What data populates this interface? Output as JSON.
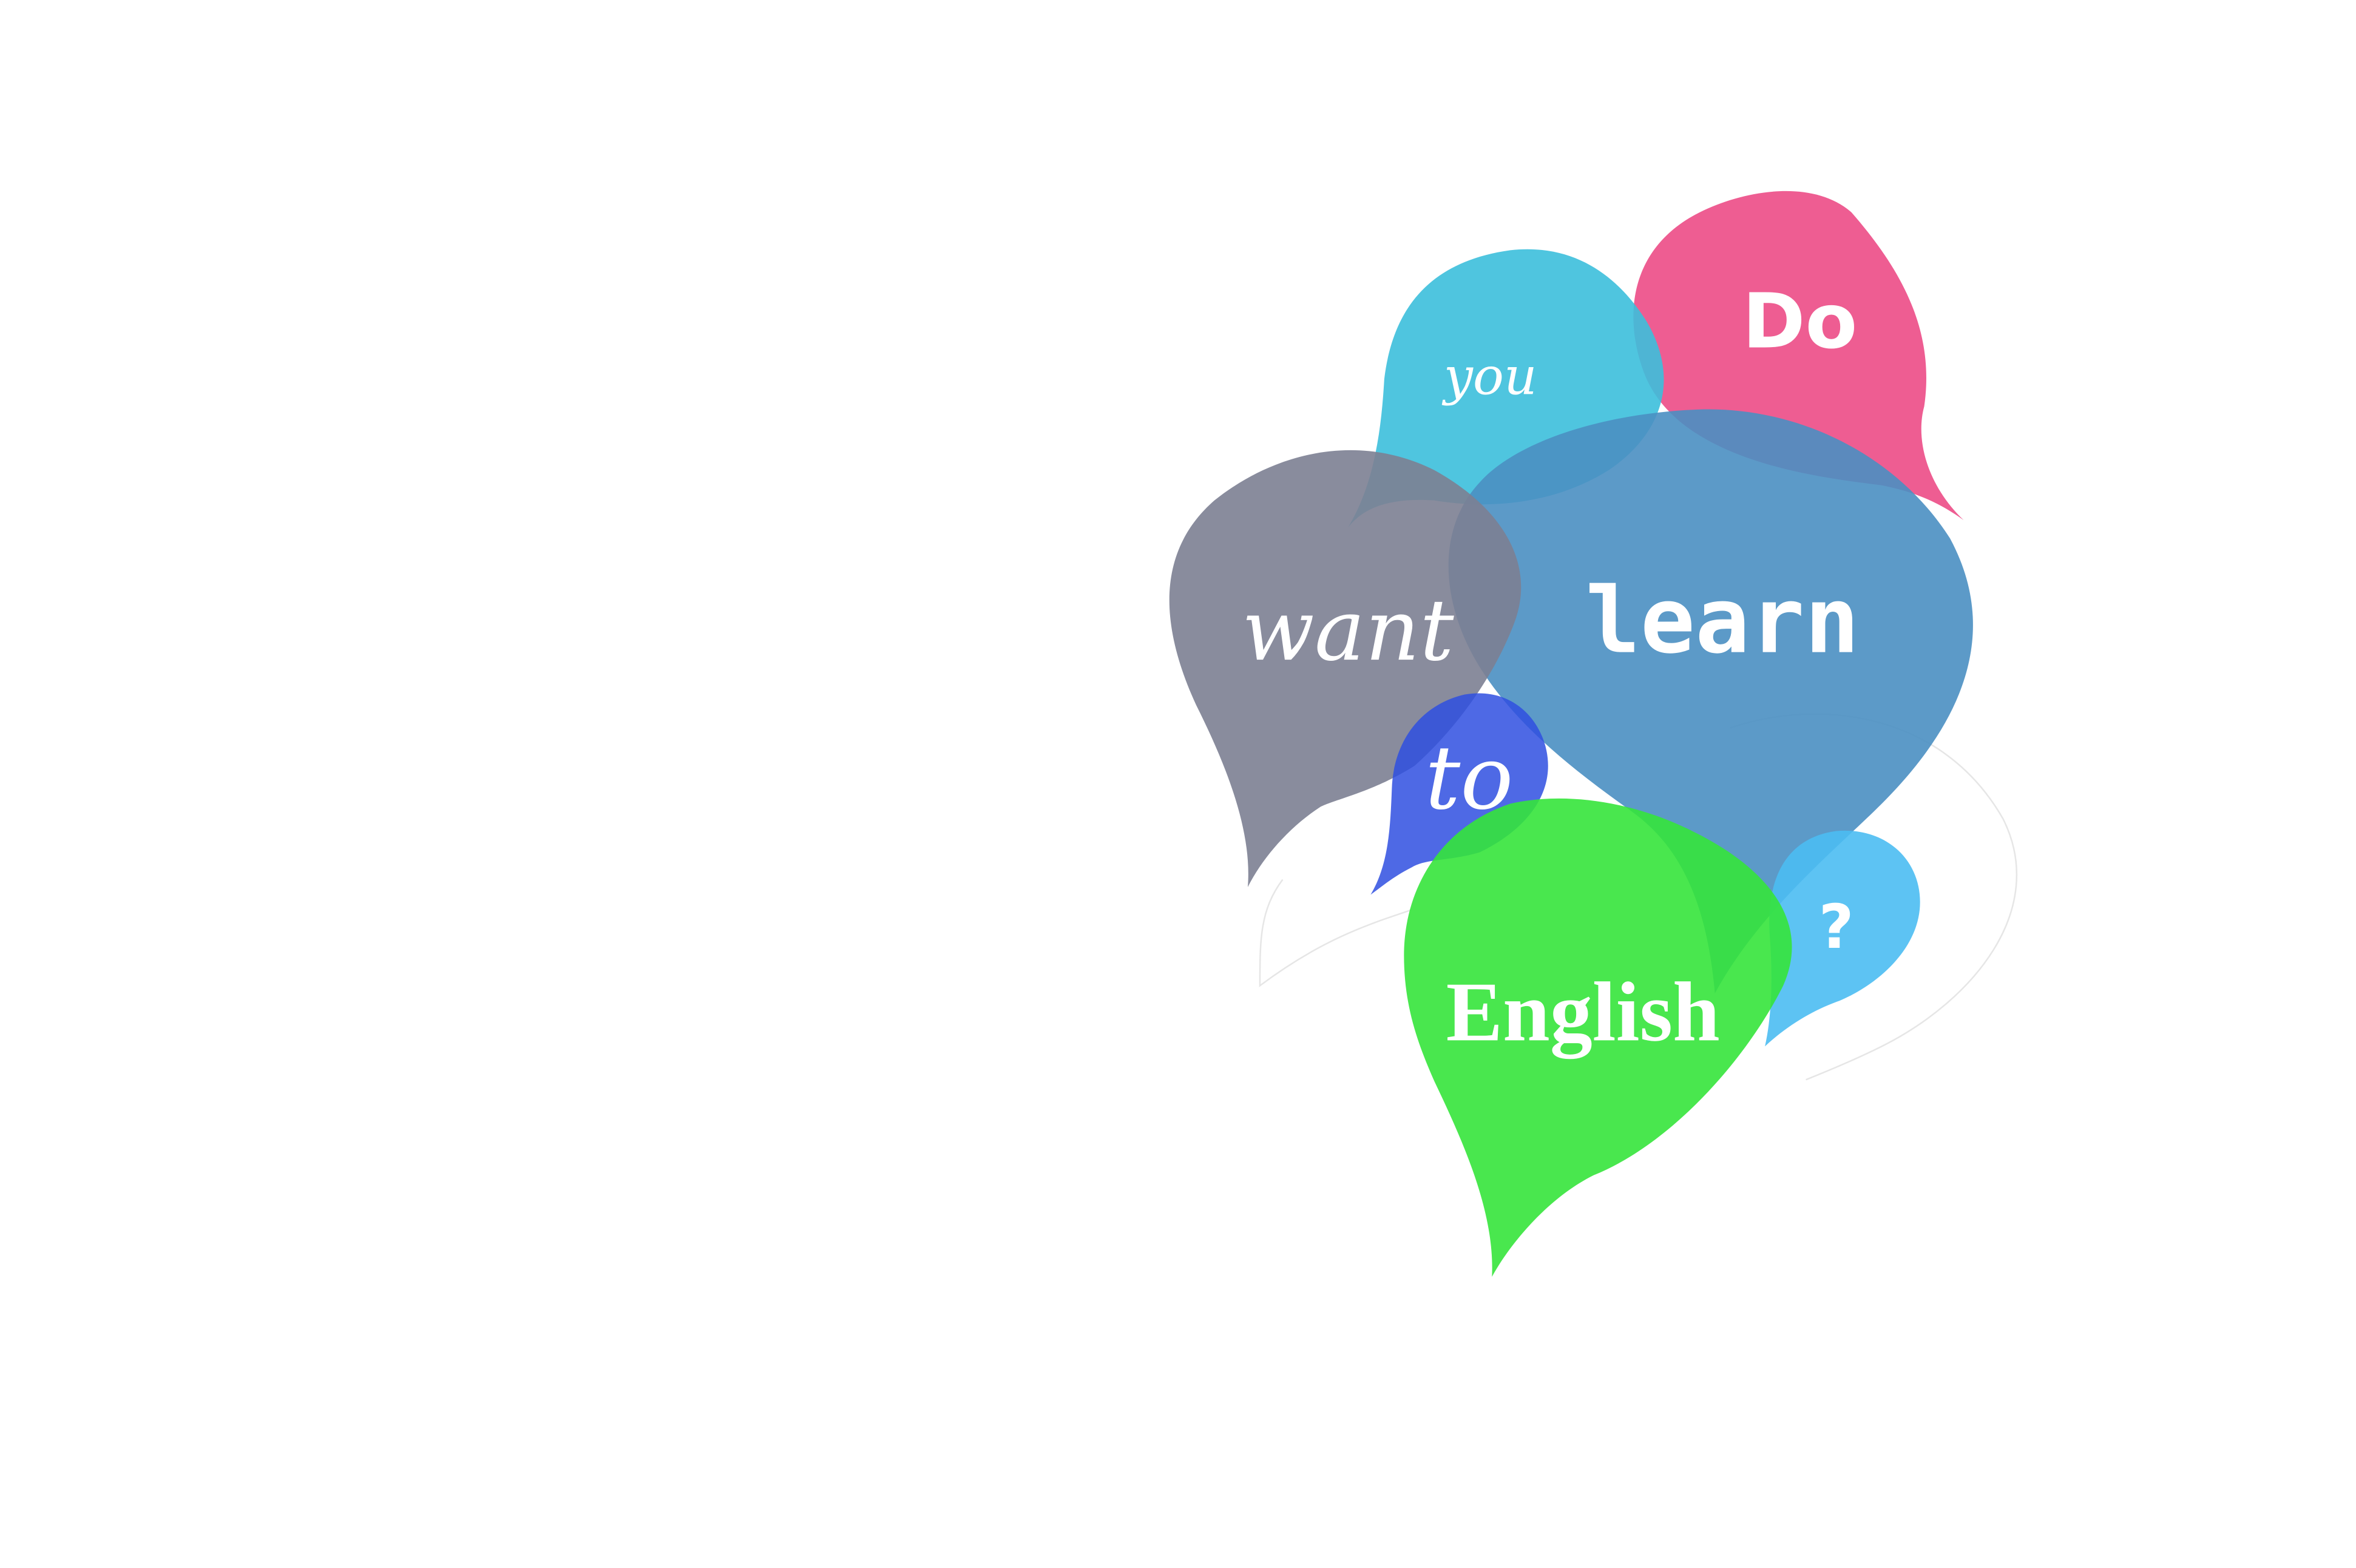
{
  "words": {
    "do": "Do",
    "you": "you",
    "want": "want",
    "learn": "learn",
    "to": "to",
    "english": "English",
    "question": "?"
  },
  "colors": {
    "pink": "#ec4b86",
    "cyan": "#3cbfdc",
    "steel_blue": "#4a8fc2",
    "slate_gray": "#7c7f92",
    "royal_blue": "#2f4fe0",
    "green": "#35e43b",
    "sky_blue": "#4bbcf2"
  }
}
